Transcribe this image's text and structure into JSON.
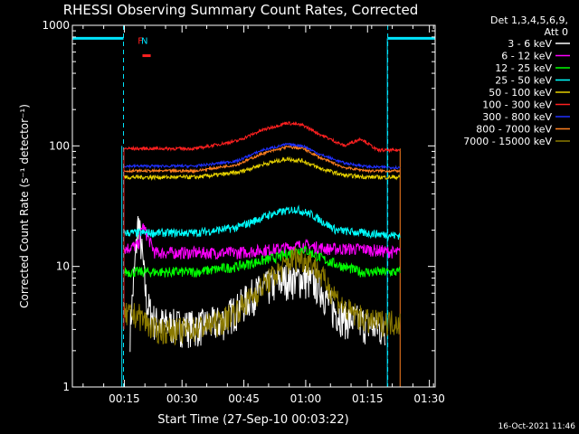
{
  "chart_data": {
    "type": "line",
    "title": "RHESSI Observing Summary Count Rates, Corrected",
    "xlabel": "Start Time (27-Sep-10 00:03:22)",
    "ylabel": "Corrected Count Rate (s⁻¹ detector⁻¹)",
    "yscale": "log",
    "ylim": [
      1,
      1000
    ],
    "xlim_minutes": [
      0,
      88
    ],
    "y_ticks": [
      "1",
      "10",
      "100",
      "1000"
    ],
    "x_ticks": [
      {
        "label": "00:15",
        "minute": 12.6
      },
      {
        "label": "00:30",
        "minute": 26.6
      },
      {
        "label": "00:45",
        "minute": 41.6
      },
      {
        "label": "01:00",
        "minute": 56.6
      },
      {
        "label": "01:15",
        "minute": 71.6
      },
      {
        "label": "01:30",
        "minute": 86.6
      }
    ],
    "legend_header": [
      "Det 1,3,4,5,6,9,",
      "Att 0"
    ],
    "legend_placement": "right",
    "data_span_minutes": [
      12.5,
      79.5
    ],
    "eclipse_minutes": [
      [
        0,
        12.4
      ],
      [
        76.5,
        88
      ]
    ],
    "flag_labels": [
      {
        "label": "F",
        "minute": 16.5
      },
      {
        "label": "N",
        "minute": 17.5
      }
    ],
    "series": [
      {
        "name": "3 - 6 keV",
        "color": "#ffffff",
        "x": [
          14,
          16,
          17,
          18,
          20,
          24,
          30,
          36,
          40,
          44,
          48,
          52,
          56,
          60,
          63,
          66,
          70,
          73,
          76
        ],
        "y": [
          3,
          25,
          12,
          5,
          3.5,
          3.3,
          3.2,
          3.5,
          4.5,
          6,
          7,
          8,
          8,
          7,
          4.5,
          3.8,
          3.5,
          3.2,
          3
        ]
      },
      {
        "name": "6 - 12 keV",
        "color": "#ff00ff",
        "x": [
          12.5,
          16,
          17,
          20,
          28,
          40,
          50,
          56,
          62,
          70,
          79.5
        ],
        "y": [
          14,
          15,
          22,
          13,
          13,
          13,
          14,
          15,
          14,
          14,
          13
        ]
      },
      {
        "name": "12 - 25 keV",
        "color": "#00ff00",
        "x": [
          12.5,
          20,
          30,
          40,
          50,
          56,
          62,
          70,
          79.5
        ],
        "y": [
          9,
          9,
          9,
          10,
          12,
          14,
          11,
          9,
          9
        ]
      },
      {
        "name": "25 - 50 keV",
        "color": "#00ffff",
        "x": [
          12.5,
          20,
          30,
          40,
          48,
          54,
          58,
          64,
          70,
          79.5
        ],
        "y": [
          19,
          19,
          19,
          21,
          27,
          30,
          27,
          20,
          19,
          18
        ]
      },
      {
        "name": "50 - 100 keV",
        "color": "#e5d000",
        "x": [
          12.5,
          20,
          30,
          40,
          46,
          52,
          56,
          60,
          66,
          72,
          79.5
        ],
        "y": [
          55,
          55,
          55,
          60,
          70,
          78,
          75,
          65,
          57,
          55,
          55
        ]
      },
      {
        "name": "100 - 300 keV",
        "color": "#ff2020",
        "x": [
          12.5,
          20,
          30,
          40,
          46,
          52,
          56,
          60,
          66,
          70,
          74,
          79.5
        ],
        "y": [
          95,
          95,
          95,
          110,
          135,
          155,
          148,
          125,
          100,
          115,
          92,
          92
        ]
      },
      {
        "name": "300 - 800 keV",
        "color": "#2030ff",
        "x": [
          12.5,
          20,
          30,
          40,
          46,
          52,
          56,
          60,
          66,
          72,
          79.5
        ],
        "y": [
          68,
          68,
          68,
          75,
          92,
          103,
          100,
          85,
          72,
          67,
          66
        ]
      },
      {
        "name": "800 - 7000 keV",
        "color": "#ff8020",
        "x": [
          12.5,
          20,
          30,
          40,
          46,
          52,
          56,
          60,
          66,
          72,
          79.5
        ],
        "y": [
          62,
          62,
          62,
          70,
          86,
          98,
          95,
          80,
          66,
          62,
          62
        ]
      },
      {
        "name": "7000 - 15000 keV",
        "color": "#8b7a00",
        "x": [
          12.5,
          16,
          20,
          28,
          36,
          42,
          48,
          54,
          58,
          62,
          66,
          72,
          79.5
        ],
        "y": [
          4,
          4,
          3,
          3,
          3.5,
          5,
          8,
          12,
          11,
          7,
          4.5,
          3.5,
          3.5
        ]
      }
    ]
  },
  "timestamp": "16-Oct-2021 11:46"
}
